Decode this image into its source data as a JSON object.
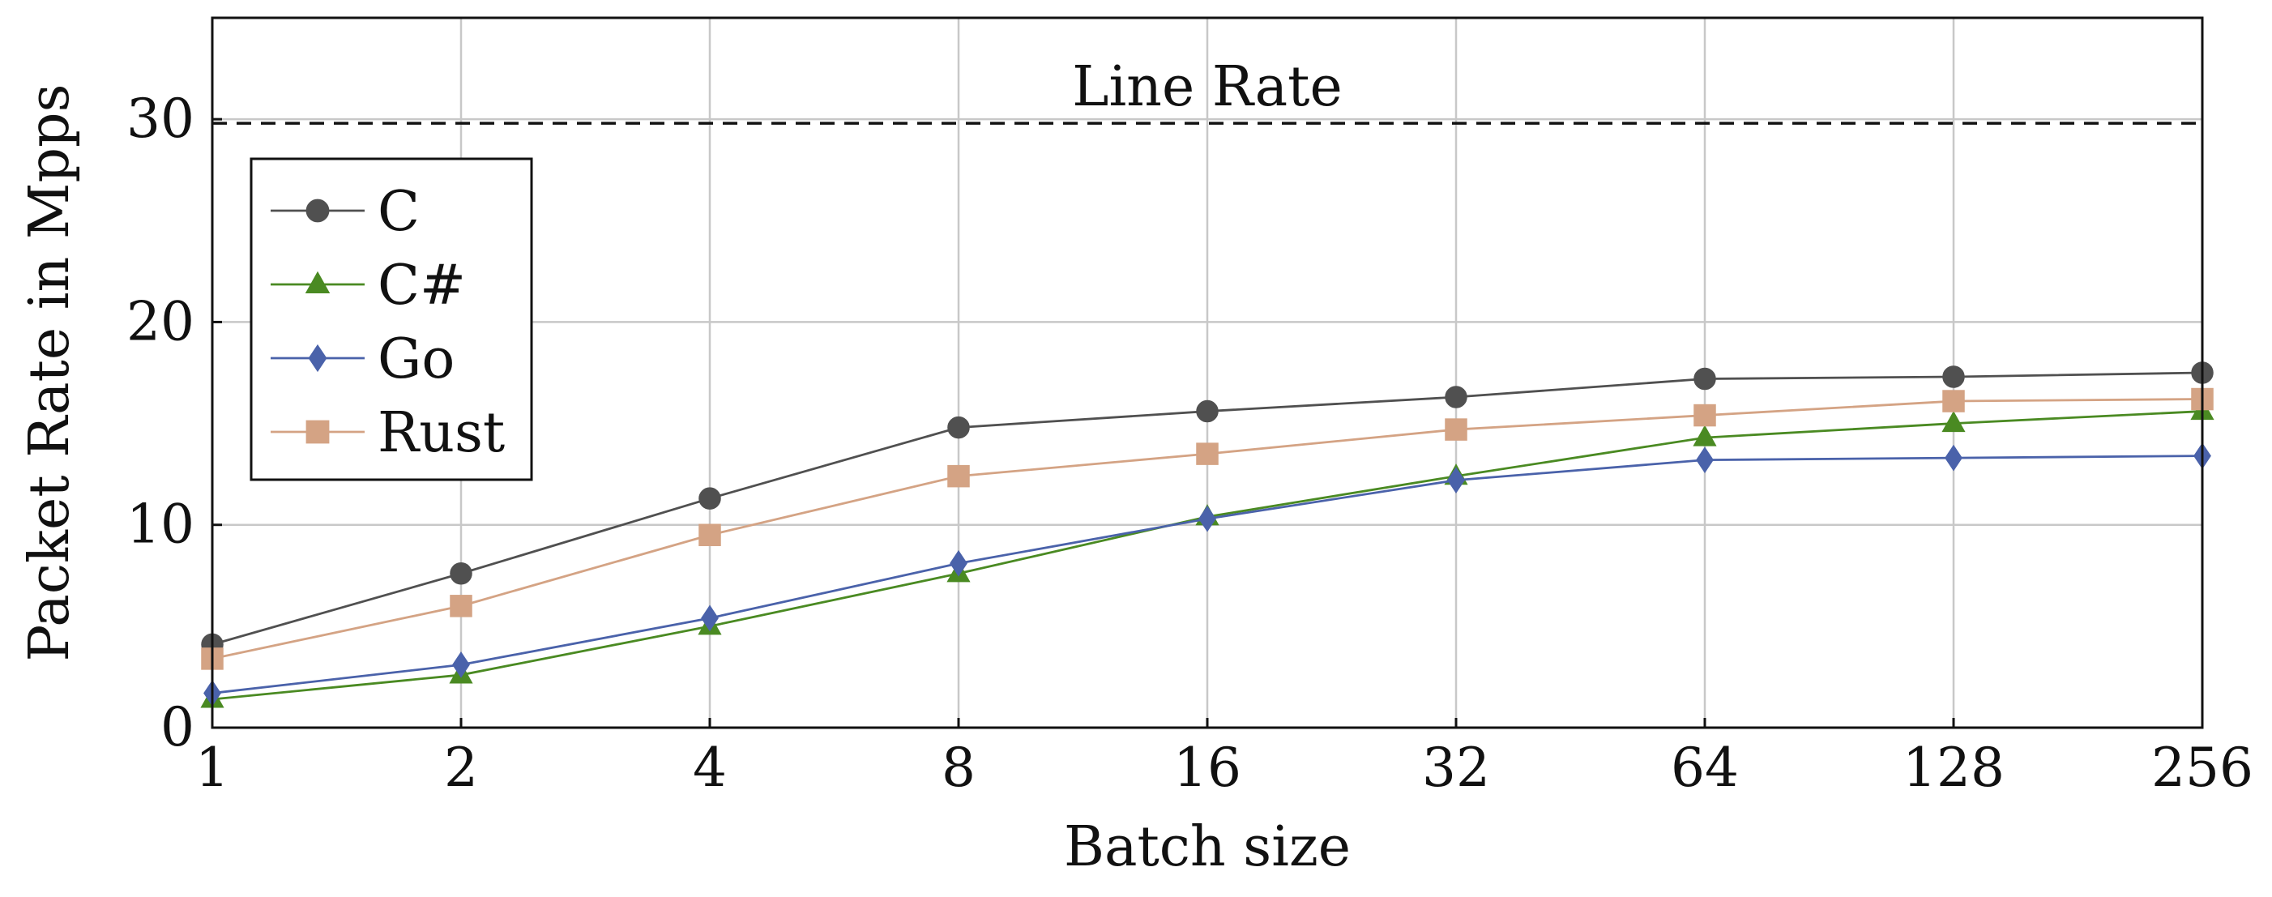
{
  "chart_data": {
    "type": "line",
    "title": "",
    "xlabel": "Batch size",
    "ylabel": "Packet Rate in Mpps",
    "x_scale": "log2",
    "categories": [
      "1",
      "2",
      "4",
      "8",
      "16",
      "32",
      "64",
      "128",
      "256"
    ],
    "x": [
      1,
      2,
      4,
      8,
      16,
      32,
      64,
      128,
      256
    ],
    "xlim": [
      1,
      256
    ],
    "ylim": [
      0,
      35
    ],
    "yticks": [
      0,
      10,
      20,
      30
    ],
    "grid": true,
    "legend_position": "top-left",
    "series": [
      {
        "name": "C",
        "marker": "circle",
        "color": "#505050",
        "values": [
          4.1,
          7.6,
          11.3,
          14.8,
          15.6,
          16.3,
          17.2,
          17.3,
          17.5
        ]
      },
      {
        "name": "C#",
        "marker": "triangle",
        "color": "#4a8a22",
        "values": [
          1.4,
          2.6,
          5.0,
          7.6,
          10.4,
          12.4,
          14.3,
          15.0,
          15.6
        ]
      },
      {
        "name": "Go",
        "marker": "diamond",
        "color": "#4a62aa",
        "values": [
          1.7,
          3.1,
          5.4,
          8.1,
          10.3,
          12.2,
          13.2,
          13.3,
          13.4
        ]
      },
      {
        "name": "Rust",
        "marker": "square",
        "color": "#d4a384",
        "values": [
          3.4,
          6.0,
          9.5,
          12.4,
          13.5,
          14.7,
          15.4,
          16.1,
          16.2
        ]
      }
    ],
    "reference_line": {
      "label": "Line Rate",
      "value": 29.8,
      "style": "dashed",
      "color": "#111111"
    }
  }
}
